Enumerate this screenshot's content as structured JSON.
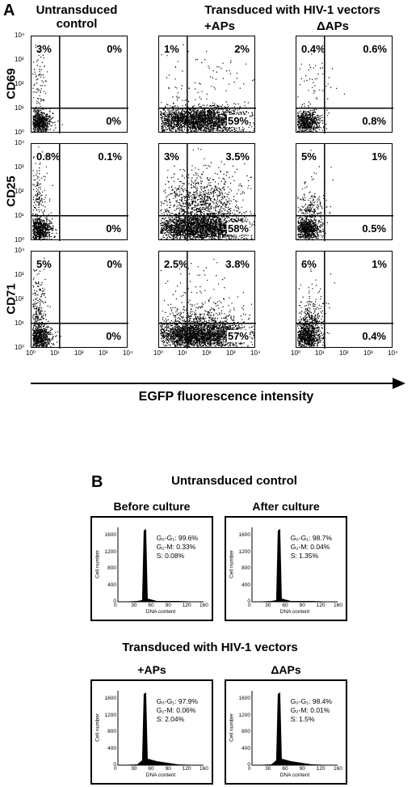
{
  "panel_a": {
    "letter": "A",
    "col_headers": {
      "untransduced": [
        "Untransduced",
        "control"
      ],
      "transduced": "Transduced with HIV-1 vectors",
      "plus_aps": "+APs",
      "delta_aps": "ΔAPs"
    },
    "rows": [
      {
        "marker": "CD69",
        "cells": [
          {
            "ul": "3%",
            "ur": "0%",
            "lr": "0%"
          },
          {
            "ul": "1%",
            "ur": "2%",
            "lr": "59%"
          },
          {
            "ul": "0.4%",
            "ur": "0.6%",
            "lr": "0.8%"
          }
        ]
      },
      {
        "marker": "CD25",
        "cells": [
          {
            "ul": "0.8%",
            "ur": "0.1%",
            "lr": "0%"
          },
          {
            "ul": "3%",
            "ur": "3.5%",
            "lr": "58%"
          },
          {
            "ul": "5%",
            "ur": "1%",
            "lr": "0.5%"
          }
        ]
      },
      {
        "marker": "CD71",
        "cells": [
          {
            "ul": "5%",
            "ur": "0%",
            "lr": "0%"
          },
          {
            "ul": "2.5%",
            "ur": "3.8%",
            "lr": "57%"
          },
          {
            "ul": "6%",
            "ur": "1%",
            "lr": "0.4%"
          }
        ]
      }
    ],
    "y_ticks": [
      "10⁴",
      "10³",
      "10²",
      "10¹",
      "10⁰"
    ],
    "x_ticks": [
      "10⁰",
      "10¹",
      "10²",
      "10³",
      "10⁴"
    ],
    "x_axis_label": "EGFP fluorescence intensity"
  },
  "panel_b": {
    "letter": "B",
    "untransduced_title": "Untransduced control",
    "transduced_title": "Transduced with HIV-1 vectors",
    "histograms": [
      {
        "title": "Before culture",
        "stats": [
          "G₀-G₁: 99.6%",
          "G₂-M: 0.33%",
          "S: 0.08%"
        ]
      },
      {
        "title": "After culture",
        "stats": [
          "G₀-G₁: 98.7%",
          "G₂-M: 0.04%",
          "S: 1.35%"
        ]
      },
      {
        "title": "+APs",
        "stats": [
          "G₀-G₁: 97.9%",
          "G₂-M: 0.06%",
          "S: 2.04%"
        ]
      },
      {
        "title": "ΔAPs",
        "stats": [
          "G₀-G₁: 98.4%",
          "G₂-M: 0.01%",
          "S: 1.5%"
        ]
      }
    ],
    "y_label": "Cell number",
    "x_label": "DNA content",
    "y_ticks": [
      "1600",
      "1200",
      "800",
      "400",
      "0"
    ],
    "x_ticks": [
      "0",
      "30",
      "60",
      "90",
      "120",
      "160"
    ]
  }
}
